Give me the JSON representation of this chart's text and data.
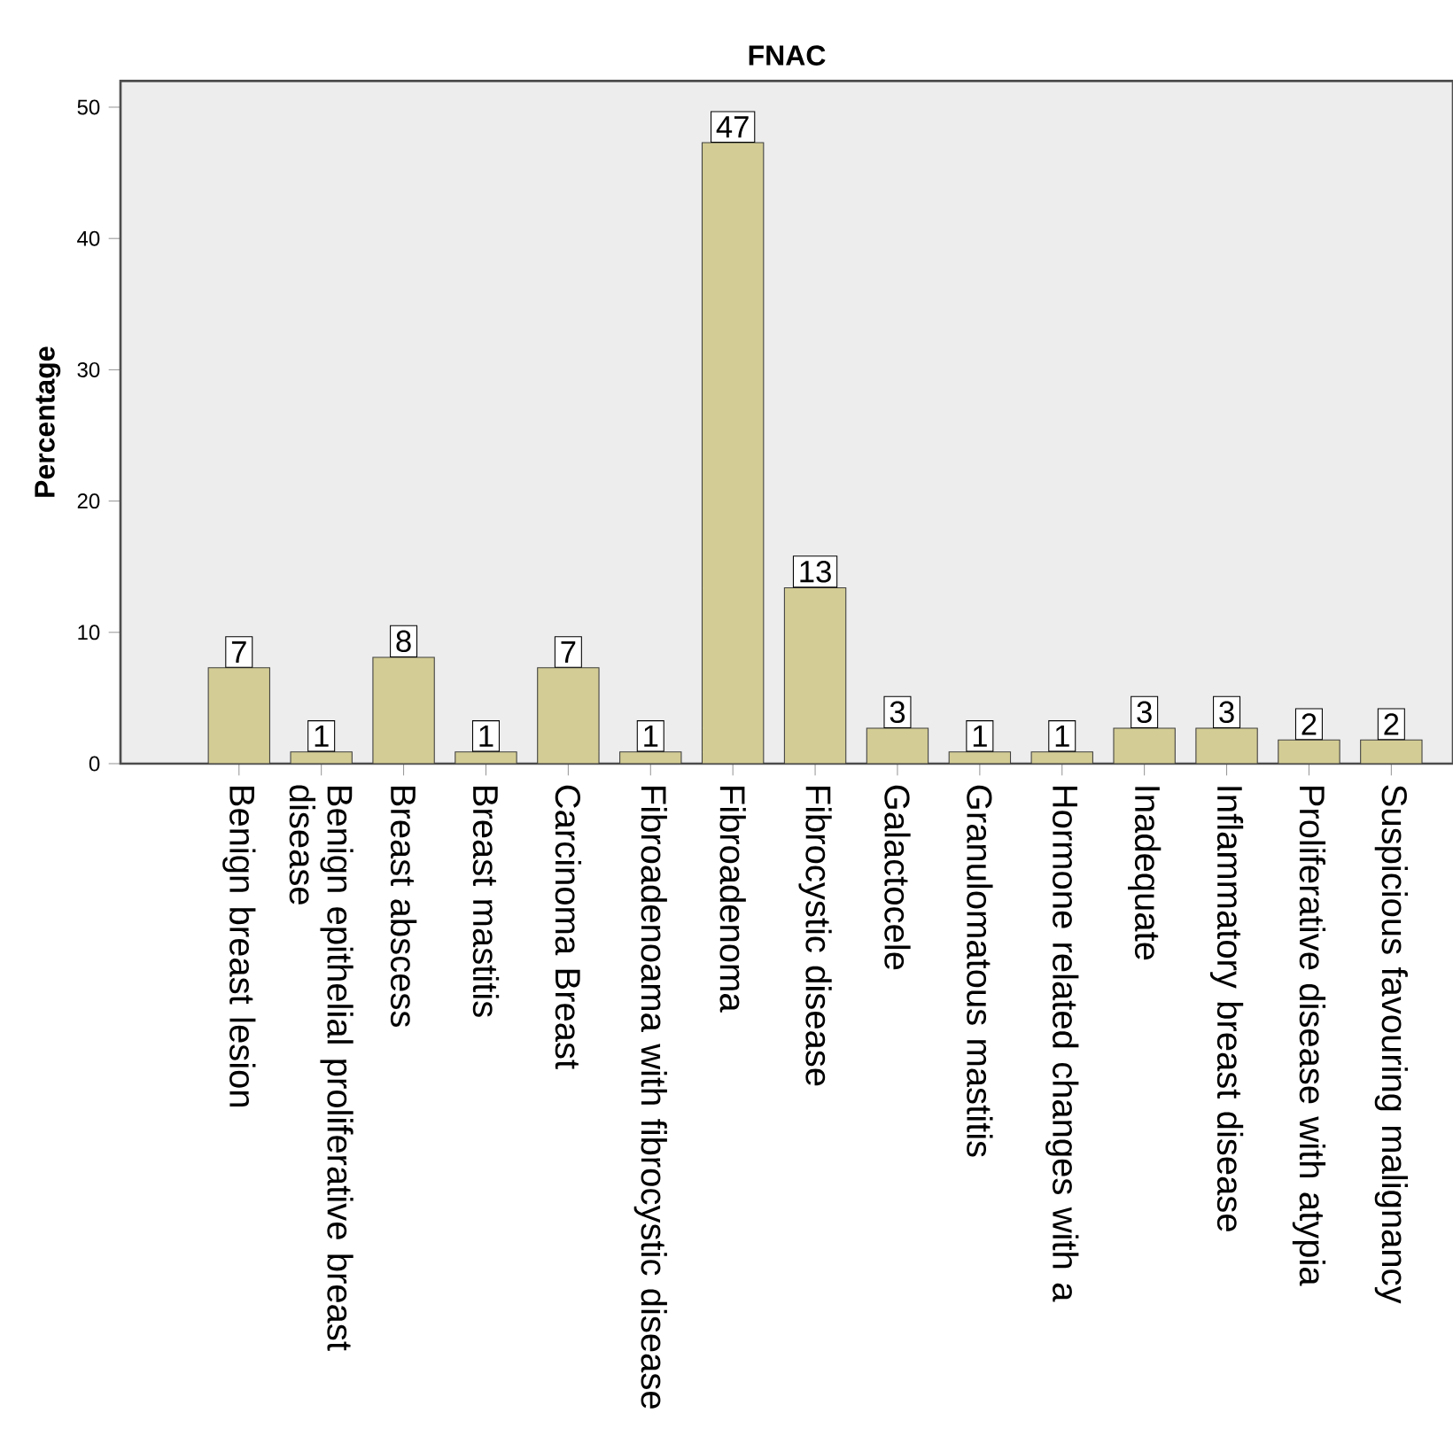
{
  "chart_data": {
    "type": "bar",
    "title": "FNAC",
    "ylabel": "Percentage",
    "categories": [
      "Benign breast lesion",
      "Benign epithelial proliferative breast disease",
      "Breast abscess",
      "Breast mastitis",
      "Carcinoma Breast",
      "Fibroadenoama with fibrocystic disease",
      "Fibroadenoma",
      "Fibrocystic disease",
      "Galactocele",
      "Granulomatous mastitis",
      "Hormone related changes with a",
      "Inadequate",
      "Inflammatory breast disease",
      "Proliferative disease with atypia",
      "Suspicious favouring malignancy"
    ],
    "values": [
      7.3,
      0.9,
      8.1,
      0.9,
      7.3,
      0.9,
      47.3,
      13.4,
      2.7,
      0.9,
      0.9,
      2.7,
      2.7,
      1.8,
      1.8
    ],
    "value_labels": [
      "7",
      "1",
      "8",
      "1",
      "7",
      "1",
      "47",
      "13",
      "3",
      "1",
      "1",
      "3",
      "3",
      "2",
      "2"
    ],
    "color": "#d3cc94",
    "ylim": [
      0,
      52
    ],
    "yticks": [
      0,
      10,
      20,
      30,
      40,
      50
    ]
  }
}
